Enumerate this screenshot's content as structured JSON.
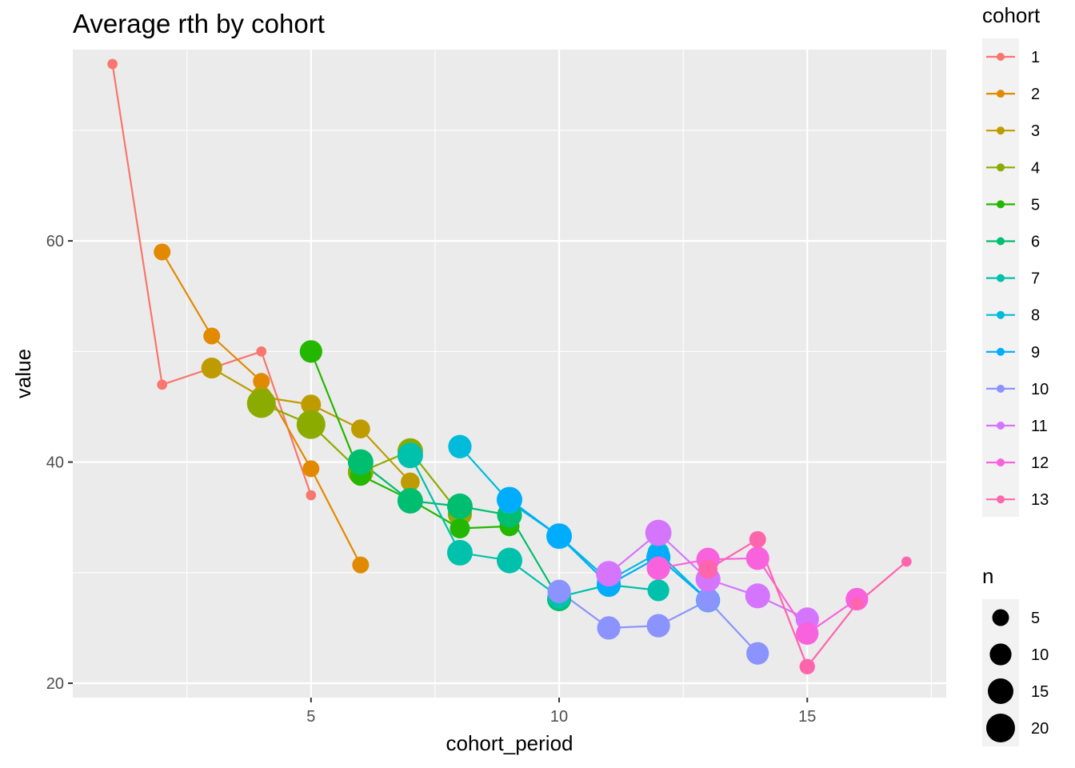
{
  "chart_data": {
    "type": "line",
    "title": "Average rth by cohort",
    "xlabel": "cohort_period",
    "ylabel": "value",
    "xlim": [
      0.2,
      17.8
    ],
    "ylim": [
      18.7,
      77.3
    ],
    "x_ticks": [
      5,
      10,
      15
    ],
    "x_tick_labels": [
      "5",
      "10",
      "15"
    ],
    "x_minor_ticks": [
      2.5,
      7.5,
      12.5,
      17.5
    ],
    "y_ticks": [
      20,
      40,
      60
    ],
    "y_tick_labels": [
      "20",
      "40",
      "60"
    ],
    "y_minor_ticks": [
      30,
      50,
      70
    ],
    "grid": true,
    "legend_position": "right",
    "legend_color_title": "cohort",
    "legend_size_title": "n",
    "size_legend": [
      {
        "label": "5",
        "n": 5
      },
      {
        "label": "10",
        "n": 10
      },
      {
        "label": "15",
        "n": 15
      },
      {
        "label": "20",
        "n": 20
      }
    ],
    "series": [
      {
        "name": "1",
        "color": "#F8766D",
        "points": [
          {
            "x": 1,
            "y": 76.0,
            "n": 1
          },
          {
            "x": 2,
            "y": 47.0,
            "n": 1
          },
          {
            "x": 4,
            "y": 50.0,
            "n": 1
          },
          {
            "x": 5,
            "y": 37.0,
            "n": 1
          }
        ]
      },
      {
        "name": "2",
        "color": "#E18A00",
        "points": [
          {
            "x": 2,
            "y": 59.0,
            "n": 5
          },
          {
            "x": 3,
            "y": 51.4,
            "n": 5
          },
          {
            "x": 4,
            "y": 47.3,
            "n": 5
          },
          {
            "x": 5,
            "y": 39.4,
            "n": 5
          },
          {
            "x": 6,
            "y": 30.7,
            "n": 5
          }
        ]
      },
      {
        "name": "3",
        "color": "#BE9C00",
        "points": [
          {
            "x": 3,
            "y": 48.5,
            "n": 9
          },
          {
            "x": 4,
            "y": 45.9,
            "n": 9
          },
          {
            "x": 5,
            "y": 45.2,
            "n": 8
          },
          {
            "x": 6,
            "y": 43.0,
            "n": 7
          },
          {
            "x": 7,
            "y": 38.2,
            "n": 7
          }
        ]
      },
      {
        "name": "4",
        "color": "#8CAB00",
        "points": [
          {
            "x": 4,
            "y": 45.3,
            "n": 20
          },
          {
            "x": 5,
            "y": 43.4,
            "n": 20
          },
          {
            "x": 6,
            "y": 39.1,
            "n": 15
          },
          {
            "x": 7,
            "y": 41.0,
            "n": 15
          },
          {
            "x": 8,
            "y": 35.3,
            "n": 13
          }
        ]
      },
      {
        "name": "5",
        "color": "#24B700",
        "points": [
          {
            "x": 5,
            "y": 50.0,
            "n": 11
          },
          {
            "x": 6,
            "y": 38.8,
            "n": 9
          },
          {
            "x": 7,
            "y": 36.6,
            "n": 9
          },
          {
            "x": 8,
            "y": 34.0,
            "n": 8
          },
          {
            "x": 9,
            "y": 34.2,
            "n": 8
          }
        ]
      },
      {
        "name": "6",
        "color": "#00BE70",
        "points": [
          {
            "x": 6,
            "y": 40.0,
            "n": 15
          },
          {
            "x": 7,
            "y": 36.5,
            "n": 15
          },
          {
            "x": 8,
            "y": 36.0,
            "n": 15
          },
          {
            "x": 9,
            "y": 35.2,
            "n": 14
          },
          {
            "x": 10,
            "y": 27.6,
            "n": 13
          }
        ]
      },
      {
        "name": "7",
        "color": "#00C1AB",
        "points": [
          {
            "x": 7,
            "y": 40.6,
            "n": 15
          },
          {
            "x": 8,
            "y": 31.8,
            "n": 15
          },
          {
            "x": 9,
            "y": 31.1,
            "n": 15
          },
          {
            "x": 10,
            "y": 27.8,
            "n": 12
          },
          {
            "x": 11,
            "y": 28.9,
            "n": 11
          },
          {
            "x": 12,
            "y": 28.4,
            "n": 10
          }
        ]
      },
      {
        "name": "8",
        "color": "#00BBDA",
        "points": [
          {
            "x": 8,
            "y": 41.4,
            "n": 12
          },
          {
            "x": 9,
            "y": 36.4,
            "n": 12
          },
          {
            "x": 10,
            "y": 33.3,
            "n": 12
          },
          {
            "x": 11,
            "y": 29.3,
            "n": 12
          },
          {
            "x": 12,
            "y": 31.8,
            "n": 10
          },
          {
            "x": 13,
            "y": 27.5,
            "n": 10
          }
        ]
      },
      {
        "name": "9",
        "color": "#00ACFC",
        "points": [
          {
            "x": 9,
            "y": 36.6,
            "n": 15
          },
          {
            "x": 10,
            "y": 33.3,
            "n": 15
          },
          {
            "x": 11,
            "y": 28.9,
            "n": 13
          },
          {
            "x": 12,
            "y": 31.4,
            "n": 13
          },
          {
            "x": 13,
            "y": 27.5,
            "n": 13
          }
        ]
      },
      {
        "name": "10",
        "color": "#8B93FF",
        "points": [
          {
            "x": 10,
            "y": 28.3,
            "n": 12
          },
          {
            "x": 11,
            "y": 25.0,
            "n": 12
          },
          {
            "x": 12,
            "y": 25.2,
            "n": 12
          },
          {
            "x": 13,
            "y": 27.5,
            "n": 12
          },
          {
            "x": 14,
            "y": 22.7,
            "n": 11
          }
        ]
      },
      {
        "name": "11",
        "color": "#D575FE",
        "points": [
          {
            "x": 11,
            "y": 29.9,
            "n": 15
          },
          {
            "x": 12,
            "y": 33.6,
            "n": 16
          },
          {
            "x": 13,
            "y": 29.4,
            "n": 14
          },
          {
            "x": 14,
            "y": 27.9,
            "n": 14
          },
          {
            "x": 15,
            "y": 25.8,
            "n": 12
          }
        ]
      },
      {
        "name": "12",
        "color": "#F962DD",
        "points": [
          {
            "x": 12,
            "y": 30.4,
            "n": 12
          },
          {
            "x": 13,
            "y": 31.2,
            "n": 12
          },
          {
            "x": 14,
            "y": 31.3,
            "n": 12
          },
          {
            "x": 15,
            "y": 24.5,
            "n": 11
          },
          {
            "x": 16,
            "y": 27.6,
            "n": 11
          }
        ]
      },
      {
        "name": "13",
        "color": "#FF65AC",
        "points": [
          {
            "x": 13,
            "y": 30.3,
            "n": 7
          },
          {
            "x": 14,
            "y": 33.0,
            "n": 5
          },
          {
            "x": 15,
            "y": 21.5,
            "n": 4
          },
          {
            "x": 16,
            "y": 27.2,
            "n": 2
          },
          {
            "x": 17,
            "y": 31.0,
            "n": 1
          }
        ]
      }
    ]
  }
}
